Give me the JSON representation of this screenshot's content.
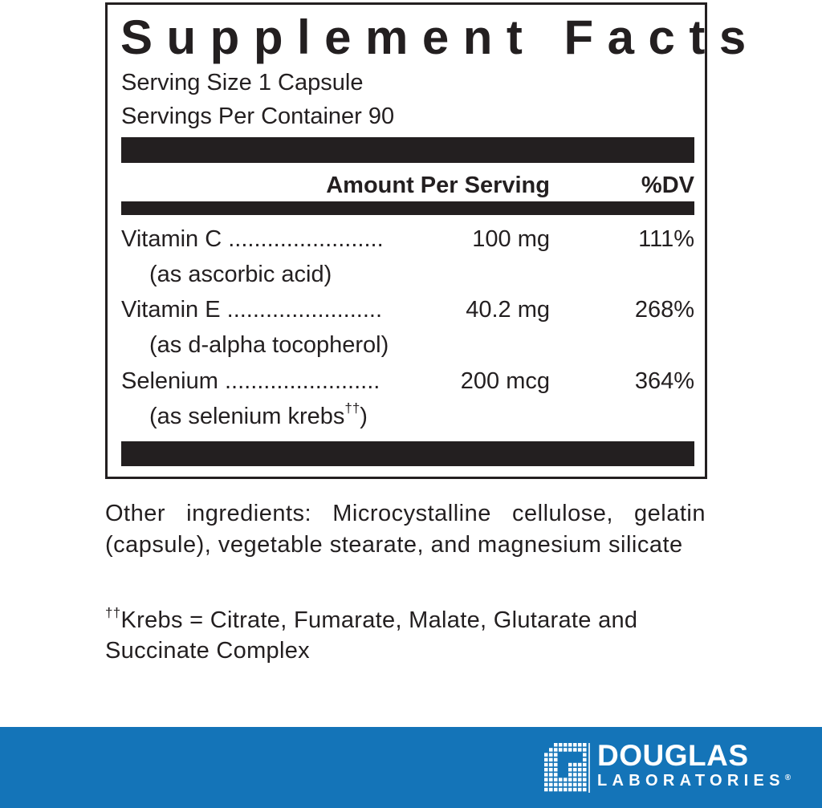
{
  "label": {
    "title": "Supplement Facts",
    "serving_size": "Serving Size 1 Capsule",
    "servings_per_container": "Servings Per Container 90",
    "header_amount": "Amount Per Serving",
    "header_dv": "%DV",
    "rows": [
      {
        "name": "Vitamin C",
        "dots": "........................",
        "amount": "100 mg",
        "dv": "111%",
        "source": "(as ascorbic acid)"
      },
      {
        "name": "Vitamin E",
        "dots": "........................",
        "amount": "40.2 mg",
        "dv": "268%",
        "source": "(as d-alpha tocopherol)"
      },
      {
        "name": "Selenium",
        "dots": "........................",
        "amount": "200 mcg",
        "dv": "364%",
        "source": "(as selenium krebs",
        "source_mark": "††",
        "source_end": ")"
      }
    ]
  },
  "other_ingredients": "Other ingredients: Microcystalline cellulose, gelatin (capsule), vegetable stearate, and magnesium silicate",
  "footnote": {
    "mark": "††",
    "text": "Krebs = Citrate, Fumarate, Malate, Glutarate and Succinate Complex"
  },
  "brand": {
    "line1": "DOUGLAS",
    "line2": "LABORATORIES",
    "registered": "®",
    "color": "#1474b8"
  }
}
